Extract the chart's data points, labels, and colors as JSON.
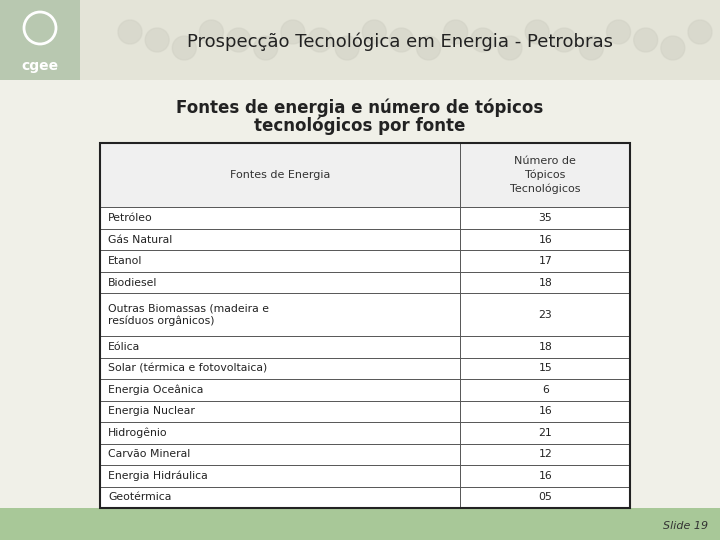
{
  "title": "Prospecção Tecnológica em Energia - Petrobras",
  "subtitle_line1": "Fontes de energia e número de tópicos",
  "subtitle_line2": "tecnológicos por fonte",
  "col_header_1": "Fontes de Energia",
  "col_header_2": "Número de\nTópicos\nTecnológicos",
  "rows": [
    [
      "Petróleo",
      "35"
    ],
    [
      "Gás Natural",
      "16"
    ],
    [
      "Etanol",
      "17"
    ],
    [
      "Biodiesel",
      "18"
    ],
    [
      "Outras Biomassas (madeira e\nresíduos orgânicos)",
      "23"
    ],
    [
      "Eólica",
      "18"
    ],
    [
      "Solar (térmica e fotovoltaica)",
      "15"
    ],
    [
      "Energia Oceânica",
      "6"
    ],
    [
      "Energia Nuclear",
      "16"
    ],
    [
      "Hidrogênio",
      "21"
    ],
    [
      "Carvão Mineral",
      "12"
    ],
    [
      "Energia Hidráulica",
      "16"
    ],
    [
      "Geotérmica",
      "05"
    ]
  ],
  "bg_color": "#f0f0e8",
  "header_bg_color": "#b8c8b0",
  "header_title_area_color": "#e8e8e0",
  "logo_bg_color": "#b8c8b0",
  "logo_text_color": "#ffffff",
  "table_border_color": "#222222",
  "row_line_color": "#555555",
  "title_color": "#222222",
  "subtitle_color": "#222222",
  "cell_header_bg": "#f0f0f0",
  "bottom_bar_color": "#a8c898",
  "slide_num": "Slide 19",
  "slide_num_color": "#333333"
}
